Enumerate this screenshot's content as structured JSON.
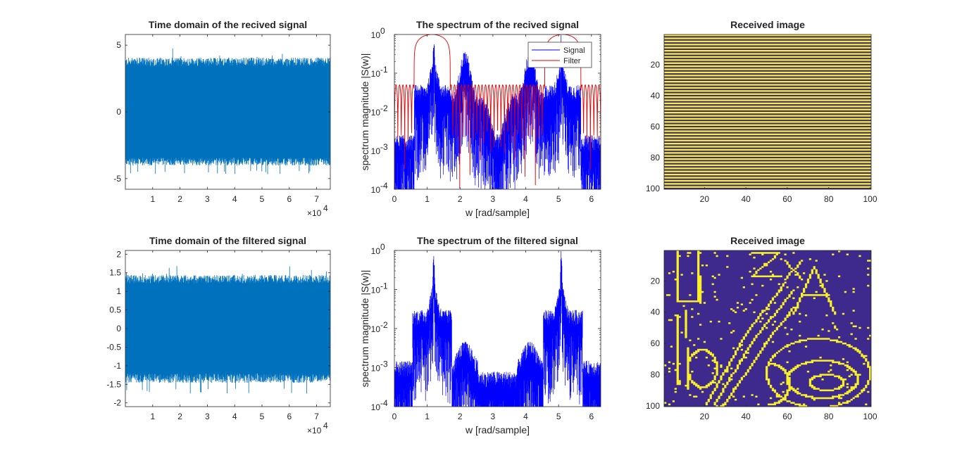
{
  "colors": {
    "time_signal": "#0072BD",
    "signal": "#0000FF",
    "filter": "#E00000",
    "image_low": "#3E2A8C",
    "image_high": "#F9F02A",
    "axes": "#262626"
  },
  "chart_data": [
    {
      "type": "line",
      "title": "Time domain of the recived signal",
      "xlabel": "",
      "ylabel": "",
      "xlim": [
        0,
        75000
      ],
      "ylim": [
        -5.8,
        5.8
      ],
      "xticks": [
        10000,
        20000,
        30000,
        40000,
        50000,
        60000,
        70000
      ],
      "xtick_labels": [
        "1",
        "2",
        "3",
        "4",
        "5",
        "6",
        "7"
      ],
      "x_exponent": "×10",
      "x_exponent_power": "4",
      "yticks": [
        -5,
        0,
        5
      ],
      "ytick_labels": [
        "-5",
        "0",
        "5"
      ],
      "series": [
        {
          "envelope_mean": 3.6,
          "peak_max": 4.8,
          "peak_min": -4.7
        }
      ]
    },
    {
      "type": "line",
      "title": "The spectrum of the recived signal",
      "xlabel": "w [rad/sample]",
      "ylabel": "spectrum magnitude |S(w)|",
      "xlim": [
        0,
        6.2832
      ],
      "ylim": [
        0.0001,
        1
      ],
      "yscale": "log",
      "xticks": [
        0,
        1,
        2,
        3,
        4,
        5,
        6
      ],
      "xtick_labels": [
        "0",
        "1",
        "2",
        "3",
        "4",
        "5",
        "6"
      ],
      "yticks": [
        0.0001,
        0.001,
        0.01,
        0.1,
        1
      ],
      "ytick_bases": [
        "10",
        "10",
        "10",
        "10",
        "10"
      ],
      "ytick_powers": [
        "-4",
        "-3",
        "-2",
        "-1",
        "0"
      ],
      "legend": {
        "placement": "top-right",
        "entries": [
          "Signal",
          "Filter"
        ]
      },
      "series": [
        {
          "name": "Signal",
          "peaks": [
            1.2,
            2.15,
            4.13,
            5.08
          ],
          "peak_values": [
            1.0,
            0.5,
            0.5,
            1.0
          ]
        },
        {
          "name": "Filter",
          "passbands": [
            [
              0.6,
              1.7
            ],
            [
              4.58,
              5.68
            ]
          ],
          "passband_value": 1.0,
          "sidelobe_value": 0.05
        }
      ]
    },
    {
      "type": "heatmap",
      "title": "Received image",
      "xlim": [
        0.5,
        100.5
      ],
      "ylim": [
        0.5,
        100.5
      ],
      "xticks": [
        20,
        40,
        60,
        80,
        100
      ],
      "xtick_labels": [
        "20",
        "40",
        "60",
        "80",
        "100"
      ],
      "yticks": [
        20,
        40,
        60,
        80,
        100
      ],
      "ytick_labels": [
        "20",
        "40",
        "60",
        "80",
        "100"
      ],
      "pattern": "horizontal-stripes",
      "stripe_period_rows": 2
    },
    {
      "type": "line",
      "title": "Time domain of the filtered signal",
      "xlabel": "",
      "ylabel": "",
      "xlim": [
        0,
        75000
      ],
      "ylim": [
        -2.1,
        2.1
      ],
      "xticks": [
        10000,
        20000,
        30000,
        40000,
        50000,
        60000,
        70000
      ],
      "xtick_labels": [
        "1",
        "2",
        "3",
        "4",
        "5",
        "6",
        "7"
      ],
      "x_exponent": "×10",
      "x_exponent_power": "4",
      "yticks": [
        -2,
        -1.5,
        -1,
        -0.5,
        0,
        0.5,
        1,
        1.5,
        2
      ],
      "ytick_labels": [
        "-2",
        "-1.5",
        "-1",
        "-0.5",
        "0",
        "0.5",
        "1",
        "1.5",
        "2"
      ],
      "series": [
        {
          "envelope_mean": 1.28,
          "peak_max": 1.7,
          "peak_min": -1.75
        }
      ]
    },
    {
      "type": "line",
      "title": "The spectrum of the filtered  signal",
      "xlabel": "w [rad/sample]",
      "ylabel": "spectrum magnitude |S(w)|",
      "xlim": [
        0,
        6.2832
      ],
      "ylim": [
        0.0001,
        1
      ],
      "yscale": "log",
      "xticks": [
        0,
        1,
        2,
        3,
        4,
        5,
        6
      ],
      "xtick_labels": [
        "0",
        "1",
        "2",
        "3",
        "4",
        "5",
        "6"
      ],
      "yticks": [
        0.0001,
        0.001,
        0.01,
        0.1,
        1
      ],
      "ytick_bases": [
        "10",
        "10",
        "10",
        "10",
        "10"
      ],
      "ytick_powers": [
        "-4",
        "-3",
        "-2",
        "-1",
        "0"
      ],
      "series": [
        {
          "peaks": [
            1.2,
            5.08
          ],
          "peak_values": [
            1.0,
            1.0
          ]
        }
      ]
    },
    {
      "type": "heatmap",
      "title": "Received image",
      "xlim": [
        0.5,
        100.5
      ],
      "ylim": [
        0.5,
        100.5
      ],
      "xticks": [
        20,
        40,
        60,
        80,
        100
      ],
      "xtick_labels": [
        "20",
        "40",
        "60",
        "80",
        "100"
      ],
      "yticks": [
        20,
        40,
        60,
        80,
        100
      ],
      "ytick_labels": [
        "20",
        "40",
        "60",
        "80",
        "100"
      ],
      "pattern": "decoded-drawing"
    }
  ]
}
